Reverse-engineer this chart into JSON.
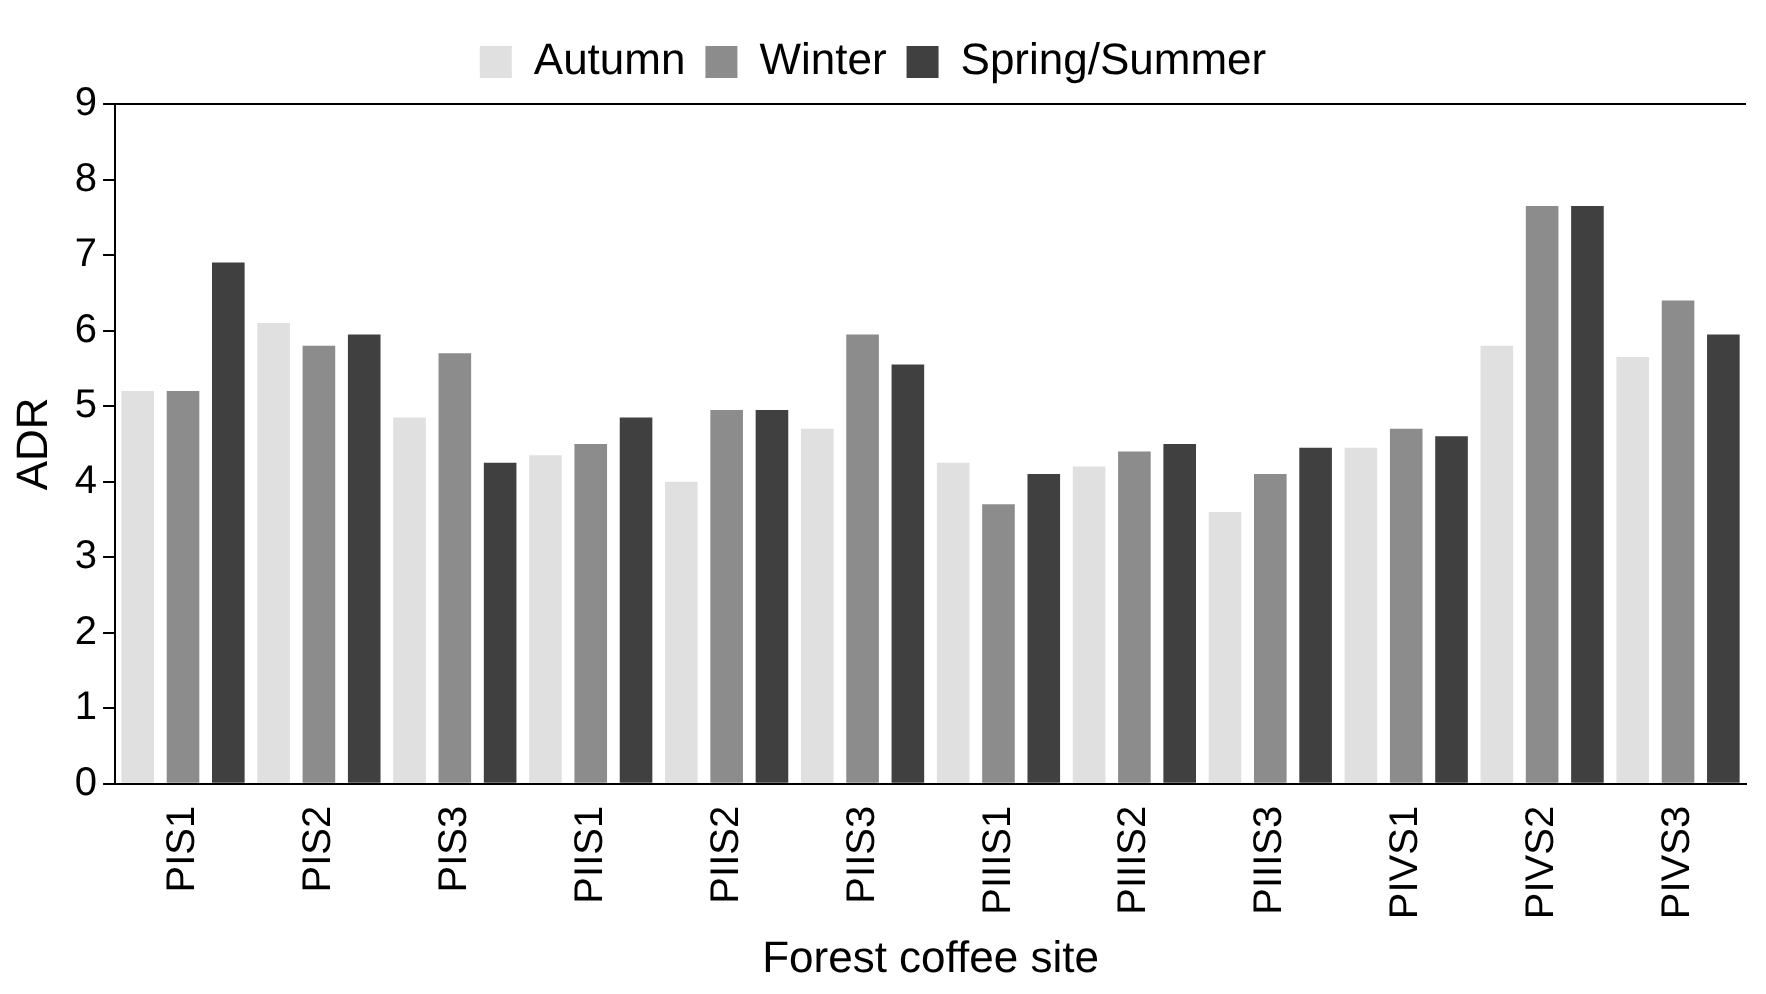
{
  "chart_data": {
    "type": "bar",
    "xlabel": "Forest coffee site",
    "ylabel": "ADR",
    "categories": [
      "PIS1",
      "PIS2",
      "PIS3",
      "PIIS1",
      "PIIS2",
      "PIIS3",
      "PIIIS1",
      "PIIIS2",
      "PIIIS3",
      "PIVS1",
      "PIVS2",
      "PIVS3"
    ],
    "series": [
      {
        "name": "Autumn",
        "color": "#e0e0e0",
        "values": [
          5.2,
          6.1,
          4.85,
          4.35,
          4.0,
          4.7,
          4.25,
          4.2,
          3.6,
          4.45,
          5.8,
          5.65
        ]
      },
      {
        "name": "Winter",
        "color": "#8c8c8c",
        "values": [
          5.2,
          5.8,
          5.7,
          4.5,
          4.95,
          5.95,
          3.7,
          4.4,
          4.1,
          4.7,
          7.65,
          6.4
        ]
      },
      {
        "name": "Spring/Summer",
        "color": "#404040",
        "values": [
          6.9,
          5.95,
          4.25,
          4.85,
          4.95,
          5.55,
          4.1,
          4.5,
          4.45,
          4.6,
          7.65,
          5.95
        ]
      }
    ],
    "ylim": [
      0,
      9
    ],
    "yticks": [
      0,
      1,
      2,
      3,
      4,
      5,
      6,
      7,
      8,
      9
    ],
    "grid": false,
    "legend": "top"
  }
}
